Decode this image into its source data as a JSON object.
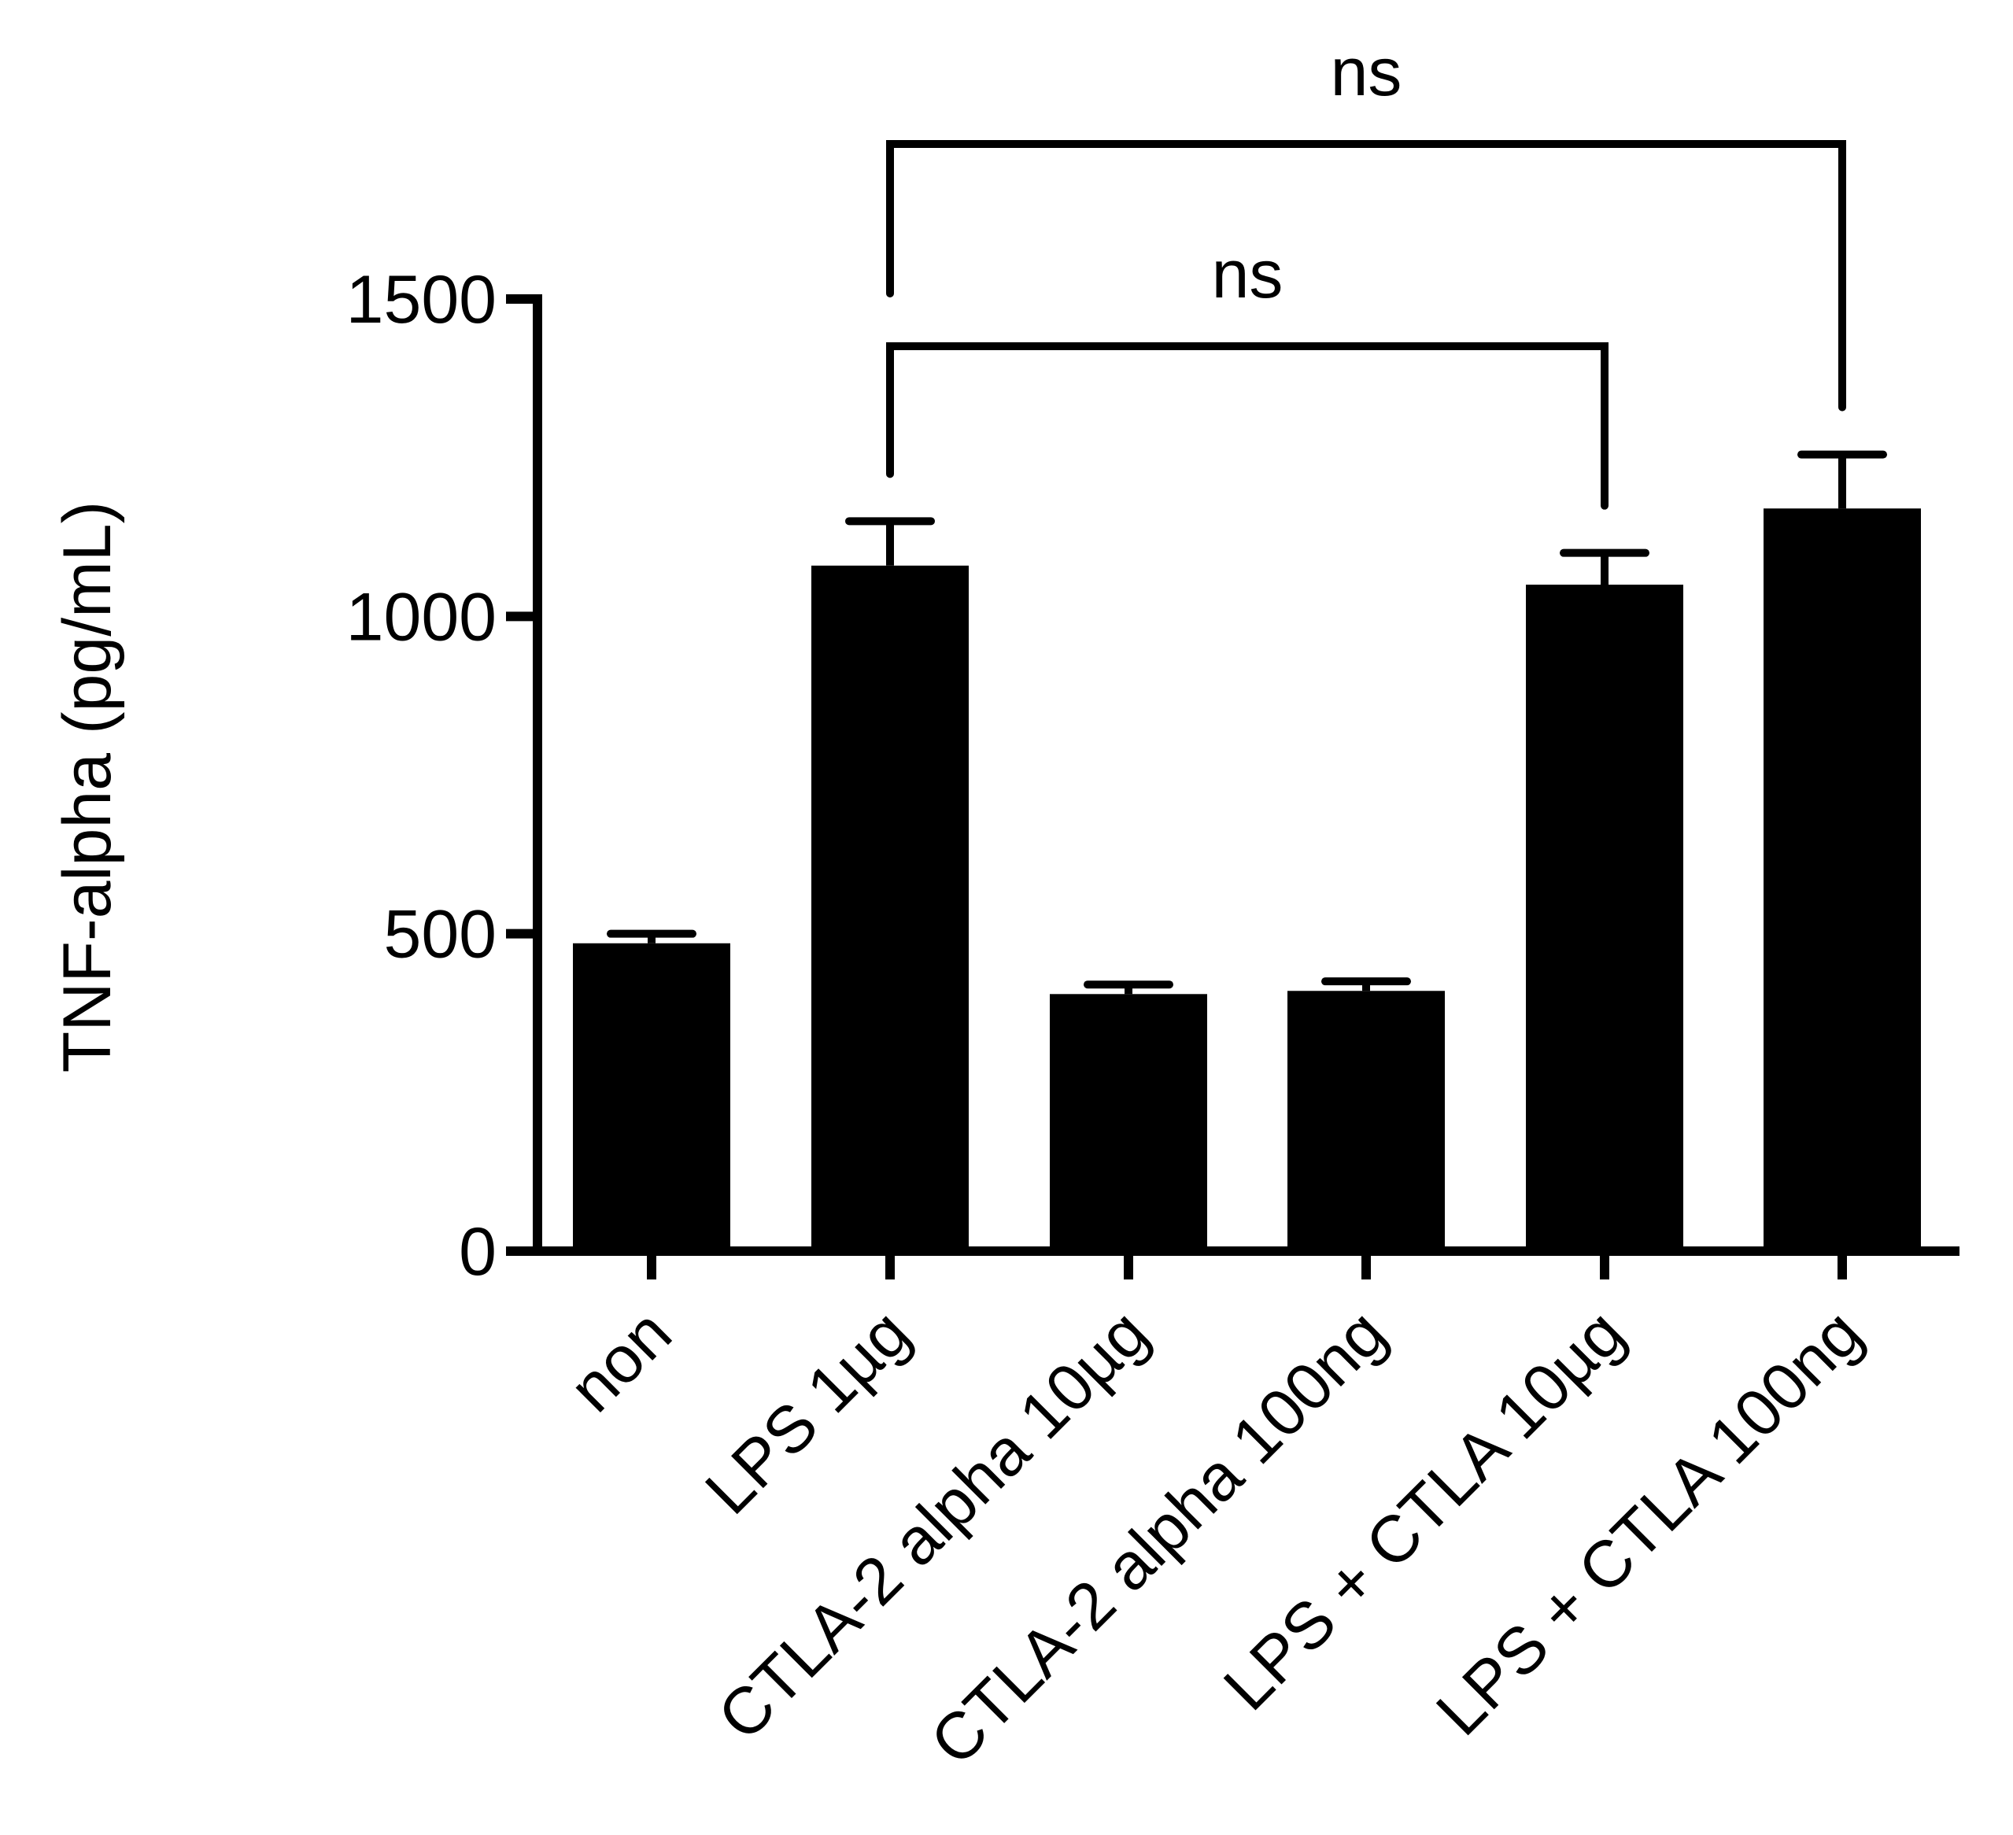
{
  "chart_data": {
    "type": "bar",
    "title": "",
    "xlabel": "",
    "ylabel": "TNF-alpha (pg/mL)",
    "ylim": [
      0,
      1500
    ],
    "yticks": [
      0,
      500,
      1000,
      1500
    ],
    "yticklabels": [
      "0",
      "500",
      "1000",
      "1500"
    ],
    "categories": [
      "non",
      "LPS 1µg",
      "CTLA-2 alpha 10µg",
      "CTLA-2 alpha 100ng",
      "LPS + CTLA 10µg",
      "LPS + CTLA 100ng"
    ],
    "values": [
      485,
      1080,
      405,
      410,
      1050,
      1170
    ],
    "errors": [
      15,
      70,
      15,
      15,
      50,
      85
    ],
    "bar_color": "#000000",
    "grid": false,
    "annotations": [
      {
        "label": "ns",
        "from": 1,
        "to": 4,
        "level": 1
      },
      {
        "label": "ns",
        "from": 1,
        "to": 5,
        "level": 2
      }
    ]
  }
}
